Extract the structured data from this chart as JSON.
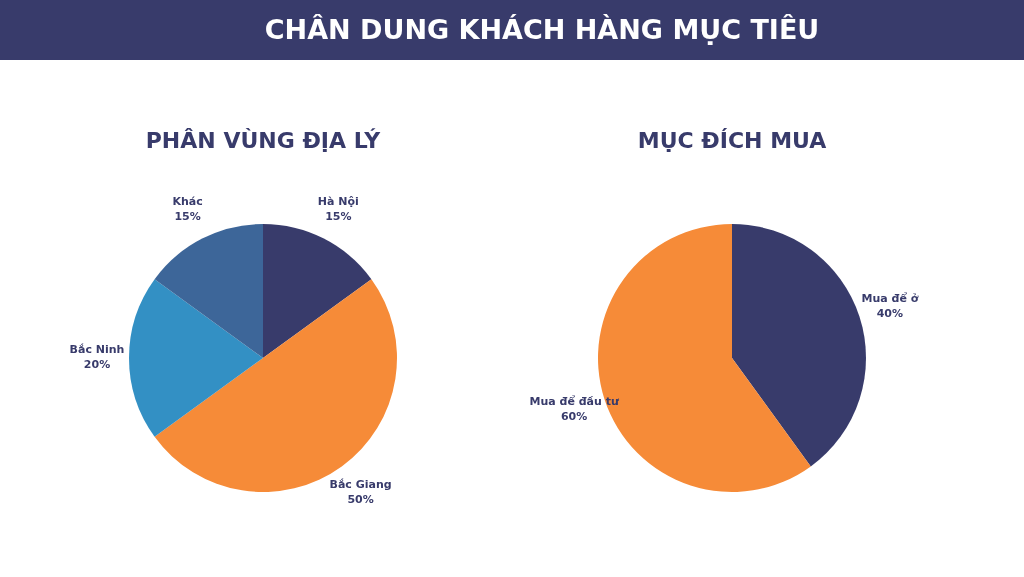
{
  "chart_data": [
    {
      "type": "pie",
      "title": "PHÂN VÙNG ĐỊA LÝ",
      "annotations": [
        "CHÂN DUNG KHÁCH HÀNG MỤC TIÊU"
      ],
      "categories": [
        "Hà Nội",
        "Bắc Giang",
        "Bắc Ninh",
        "Khác"
      ],
      "values": [
        15,
        50,
        20,
        15
      ],
      "value_labels": [
        "15%",
        "50%",
        "20%",
        "15%"
      ],
      "colors": [
        "#383b6b",
        "#f68b38",
        "#3390c4",
        "#3d6699"
      ],
      "legend": false
    },
    {
      "type": "pie",
      "title": "MỤC ĐÍCH MUA",
      "categories": [
        "Mua để ở",
        "Mua để đầu tư"
      ],
      "values": [
        40,
        60
      ],
      "value_labels": [
        "40%",
        "60%"
      ],
      "colors": [
        "#383b6b",
        "#f68b38"
      ],
      "legend": false
    }
  ]
}
